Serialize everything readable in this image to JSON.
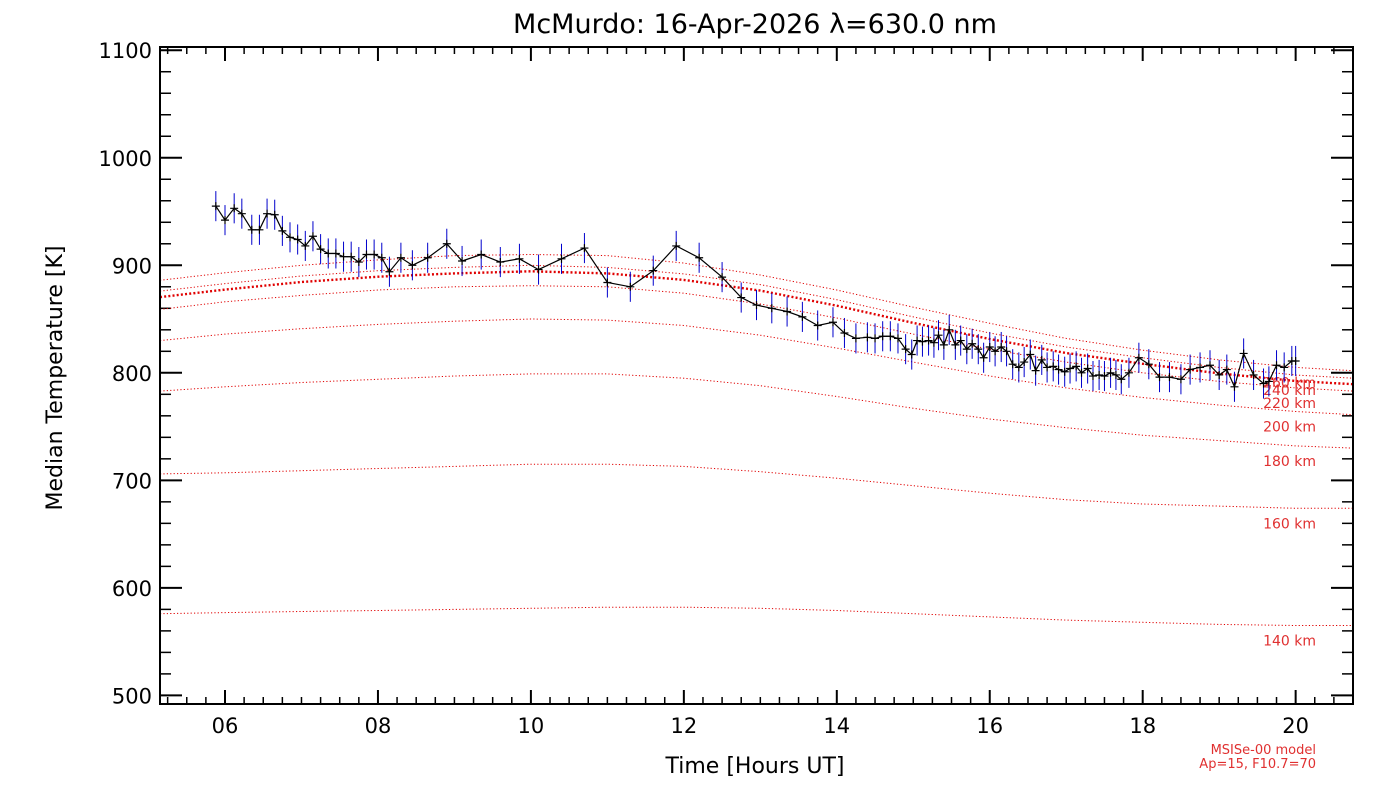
{
  "chart_data": {
    "type": "line",
    "title": "McMurdo: 16-Apr-2026 λ=630.0 nm",
    "xlabel": "Time [Hours UT]",
    "ylabel": "Median Temperature [K]",
    "xlim": [
      5.15,
      20.75
    ],
    "ylim": [
      492,
      1103
    ],
    "x_ticks": [
      6,
      8,
      10,
      12,
      14,
      16,
      18,
      20
    ],
    "x_tick_labels": [
      "06",
      "08",
      "10",
      "12",
      "14",
      "16",
      "18",
      "20"
    ],
    "y_ticks": [
      500,
      600,
      700,
      800,
      900,
      1000,
      1100
    ],
    "y_tick_labels": [
      "500",
      "600",
      "700",
      "800",
      "900",
      "1000",
      "1100"
    ],
    "grid": false,
    "colors": {
      "axes": "#000000",
      "data_line": "#000000",
      "error_bars": "#0000cc",
      "model": "#e00000",
      "model_label": "#e03030"
    },
    "series": [
      {
        "style": "line-with-errorbars",
        "x": [
          5.88,
          6.0,
          6.12,
          6.22,
          6.35,
          6.45,
          6.55,
          6.65,
          6.75,
          6.85,
          6.95,
          7.05,
          7.15,
          7.25,
          7.35,
          7.45,
          7.55,
          7.65,
          7.75,
          7.85,
          7.95,
          8.05,
          8.15,
          8.3,
          8.45,
          8.65,
          8.9,
          9.1,
          9.35,
          9.6,
          9.85,
          10.1,
          10.4,
          10.7,
          11.0,
          11.3,
          11.6,
          11.9,
          12.2,
          12.5,
          12.75,
          12.95,
          13.15,
          13.35,
          13.55,
          13.75,
          13.95,
          14.1,
          14.25,
          14.4,
          14.5,
          14.6,
          14.7,
          14.8,
          14.9,
          14.98,
          15.05,
          15.12,
          15.2,
          15.27,
          15.33,
          15.4,
          15.47,
          15.55,
          15.62,
          15.7,
          15.77,
          15.85,
          15.92,
          16.0,
          16.07,
          16.15,
          16.22,
          16.3,
          16.38,
          16.45,
          16.53,
          16.6,
          16.68,
          16.75,
          16.83,
          16.9,
          16.98,
          17.05,
          17.13,
          17.2,
          17.28,
          17.35,
          17.43,
          17.5,
          17.58,
          17.65,
          17.72,
          17.82,
          17.95,
          18.08,
          18.22,
          18.35,
          18.5,
          18.62,
          18.75,
          18.88,
          19.0,
          19.1,
          19.2,
          19.32,
          19.45,
          19.58,
          19.65,
          19.75,
          19.85,
          19.95,
          20.0
        ],
        "y": [
          955,
          942,
          953,
          948,
          933,
          933,
          948,
          947,
          932,
          926,
          924,
          918,
          927,
          915,
          911,
          911,
          908,
          908,
          903,
          910,
          910,
          907,
          894,
          907,
          900,
          907,
          920,
          904,
          910,
          903,
          906,
          896,
          906,
          916,
          884,
          880,
          895,
          918,
          907,
          889,
          870,
          863,
          860,
          857,
          852,
          844,
          847,
          837,
          832,
          833,
          832,
          834,
          834,
          832,
          822,
          817,
          830,
          829,
          830,
          828,
          835,
          826,
          840,
          826,
          830,
          822,
          827,
          822,
          814,
          824,
          820,
          824,
          820,
          808,
          805,
          810,
          817,
          802,
          812,
          805,
          806,
          803,
          801,
          804,
          806,
          800,
          804,
          797,
          798,
          797,
          800,
          798,
          794,
          800,
          814,
          808,
          796,
          796,
          794,
          803,
          805,
          807,
          798,
          803,
          787,
          818,
          798,
          790,
          792,
          807,
          805,
          811,
          811
        ],
        "yerr": 14
      }
    ],
    "model": {
      "x": [
        5.15,
        6.0,
        7.0,
        8.0,
        9.0,
        10.0,
        11.0,
        12.0,
        13.0,
        14.0,
        15.0,
        16.0,
        17.0,
        18.0,
        19.0,
        20.0,
        20.75
      ],
      "series": [
        {
          "name": "140 km",
          "values": [
            576,
            577,
            578,
            579,
            580,
            581,
            582,
            582,
            581,
            579,
            576,
            573,
            570,
            568,
            566,
            565,
            565
          ]
        },
        {
          "name": "160 km",
          "values": [
            706,
            707,
            709,
            711,
            713,
            715,
            715,
            713,
            708,
            702,
            695,
            688,
            682,
            678,
            676,
            674,
            674
          ]
        },
        {
          "name": "180 km",
          "values": [
            783,
            787,
            791,
            794,
            797,
            799,
            799,
            795,
            788,
            778,
            767,
            757,
            749,
            742,
            737,
            732,
            730
          ]
        },
        {
          "name": "200 km",
          "values": [
            830,
            836,
            841,
            845,
            848,
            850,
            849,
            844,
            835,
            823,
            810,
            797,
            786,
            777,
            770,
            764,
            761
          ]
        },
        {
          "name": "220 km",
          "values": [
            859,
            866,
            872,
            877,
            880,
            881,
            880,
            874,
            864,
            851,
            836,
            822,
            810,
            800,
            792,
            786,
            783
          ]
        },
        {
          "name": "240 km",
          "values": [
            876,
            883,
            890,
            895,
            898,
            900,
            898,
            892,
            882,
            868,
            852,
            837,
            824,
            814,
            805,
            798,
            795
          ]
        },
        {
          "name": "260 km",
          "values": [
            886,
            893,
            900,
            905,
            909,
            910,
            909,
            902,
            891,
            877,
            861,
            846,
            832,
            821,
            812,
            805,
            802
          ]
        }
      ],
      "label_tail": "km",
      "note_line1": "MSISe-00 model",
      "note_line2": "Ap=15, F10.7=70"
    }
  }
}
